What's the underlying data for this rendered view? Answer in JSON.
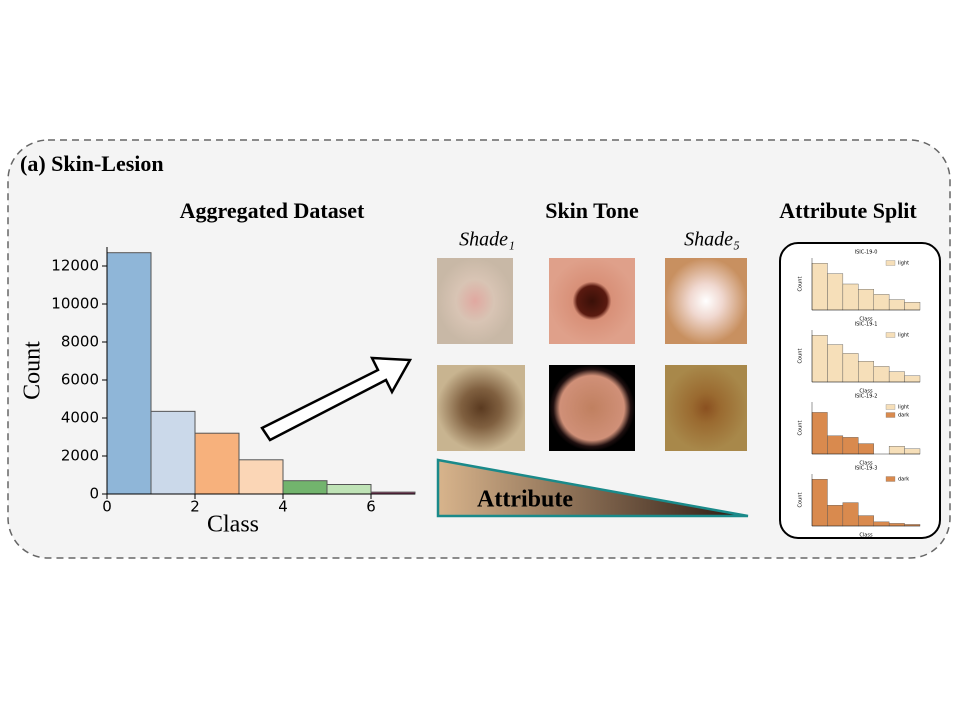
{
  "panel_label": "(a) Skin-Lesion",
  "skin_tone": {
    "title": "Skin Tone",
    "shade_first": "Shade₁",
    "shade_last": "Shade₅",
    "attribute": "Attribute"
  },
  "attribute_split": {
    "title": "Attribute Split"
  },
  "chart_data": [
    {
      "type": "histogram",
      "title": "Aggregated Dataset",
      "xlabel": "Class",
      "ylabel": "Count",
      "bins": [
        0,
        1,
        2,
        3,
        4,
        5,
        6,
        7
      ],
      "values": [
        12700,
        4350,
        3200,
        1800,
        700,
        500,
        100
      ],
      "colors": [
        "#8fb6d8",
        "#cbd9ea",
        "#f7b17c",
        "#fbd6b6",
        "#72b46d",
        "#bfe3b6",
        "#8e3b63"
      ],
      "xlim": [
        0,
        7
      ],
      "ylim": [
        0,
        13000
      ],
      "xticks": [
        0,
        2,
        4,
        6
      ],
      "yticks": [
        0,
        2000,
        4000,
        6000,
        8000,
        10000,
        12000
      ]
    },
    {
      "type": "histogram",
      "title": "ISIC-19-0",
      "xlabel": "Class",
      "ylabel": "Count",
      "bins": [
        0,
        1,
        2,
        3,
        4,
        5,
        6,
        7
      ],
      "ylim": [
        0,
        100
      ],
      "series": [
        {
          "name": "light",
          "color": "#f6dfb9",
          "values": [
            90,
            70,
            50,
            40,
            30,
            20,
            15
          ]
        }
      ]
    },
    {
      "type": "histogram",
      "title": "ISIC-19-1",
      "xlabel": "Class",
      "ylabel": "Count",
      "bins": [
        0,
        1,
        2,
        3,
        4,
        5,
        6,
        7
      ],
      "ylim": [
        0,
        100
      ],
      "series": [
        {
          "name": "light",
          "color": "#f6dfb9",
          "values": [
            90,
            72,
            55,
            40,
            30,
            20,
            12
          ]
        }
      ]
    },
    {
      "type": "histogram",
      "title": "ISIC-19-2",
      "xlabel": "Class",
      "ylabel": "Count",
      "bins": [
        0,
        1,
        2,
        3,
        4,
        5,
        6,
        7
      ],
      "ylim": [
        0,
        100
      ],
      "series": [
        {
          "name": "light",
          "color": "#f6dfb9",
          "values": [
            0,
            0,
            0,
            0,
            0,
            15,
            10
          ]
        },
        {
          "name": "dark",
          "color": "#d98a4e",
          "values": [
            80,
            35,
            32,
            20,
            0,
            0,
            0
          ]
        }
      ]
    },
    {
      "type": "histogram",
      "title": "ISIC-19-3",
      "xlabel": "Class",
      "ylabel": "Count",
      "bins": [
        0,
        1,
        2,
        3,
        4,
        5,
        6,
        7
      ],
      "ylim": [
        0,
        100
      ],
      "series": [
        {
          "name": "dark",
          "color": "#d98a4e",
          "values": [
            90,
            40,
            45,
            20,
            8,
            5,
            3
          ]
        }
      ]
    }
  ]
}
